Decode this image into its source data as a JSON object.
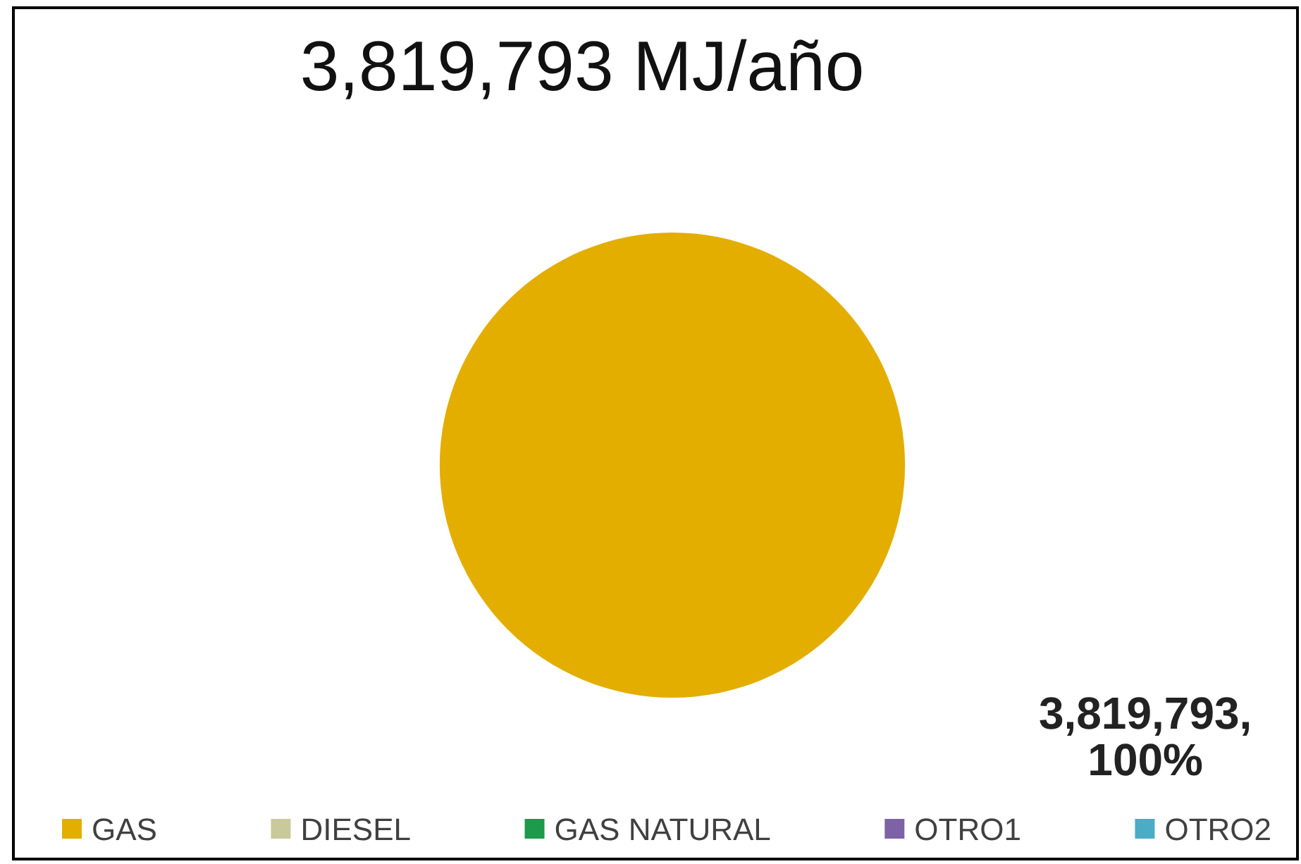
{
  "chart_data": {
    "type": "pie",
    "title": "3,819,793 MJ/año",
    "categories": [
      "GAS",
      "DIESEL",
      "GAS NATURAL",
      "OTRO1",
      "OTRO2"
    ],
    "values": [
      3819793,
      0,
      0,
      0,
      0
    ],
    "colors": [
      "#e3ae00",
      "#c9c99b",
      "#1d9a4c",
      "#7e62a6",
      "#4bacc6"
    ],
    "value_labels": [
      "3,819,793, 100%",
      null,
      null,
      null,
      null
    ],
    "legend": "bottom"
  }
}
